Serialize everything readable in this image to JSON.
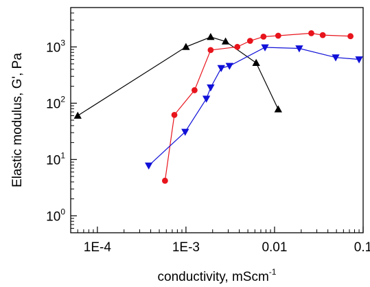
{
  "chart_data": {
    "type": "line",
    "xscale": "log",
    "yscale": "log",
    "xlim": [
      5e-05,
      0.1
    ],
    "ylim": [
      0.5,
      5000
    ],
    "grid": false,
    "xlabel": "conductivity, mScm",
    "xlabel_exponent": "-1",
    "ylabel": "Elastic modulus, G', Pa",
    "x_ticks": [
      {
        "value": 0.0001,
        "label": "1E-4"
      },
      {
        "value": 0.001,
        "label": "1E-3"
      },
      {
        "value": 0.01,
        "label": "0.01"
      },
      {
        "value": 0.1,
        "label": "0.1"
      }
    ],
    "y_ticks": [
      {
        "value": 1,
        "base": "10",
        "exp": "0"
      },
      {
        "value": 10,
        "base": "10",
        "exp": "1"
      },
      {
        "value": 100,
        "base": "10",
        "exp": "2"
      },
      {
        "value": 1000,
        "base": "10",
        "exp": "3"
      }
    ],
    "series": [
      {
        "color": "#000000",
        "marker": "triangle-up",
        "points": [
          [
            6e-05,
            60
          ],
          [
            0.001,
            1000
          ],
          [
            0.0019,
            1500
          ],
          [
            0.0028,
            1250
          ],
          [
            0.0062,
            520
          ],
          [
            0.011,
            78
          ]
        ]
      },
      {
        "color": "#e8141c",
        "marker": "circle",
        "points": [
          [
            0.00058,
            4.2
          ],
          [
            0.00074,
            62
          ],
          [
            0.00125,
            170
          ],
          [
            0.0019,
            880
          ],
          [
            0.0038,
            1000
          ],
          [
            0.0053,
            1280
          ],
          [
            0.0075,
            1520
          ],
          [
            0.011,
            1580
          ],
          [
            0.026,
            1750
          ],
          [
            0.035,
            1620
          ],
          [
            0.072,
            1550
          ]
        ]
      },
      {
        "color": "#1010d8",
        "marker": "triangle-down",
        "points": [
          [
            0.00038,
            7.8
          ],
          [
            0.00098,
            31
          ],
          [
            0.0017,
            120
          ],
          [
            0.0019,
            190
          ],
          [
            0.0025,
            420
          ],
          [
            0.0031,
            460
          ],
          [
            0.0078,
            980
          ],
          [
            0.019,
            940
          ],
          [
            0.049,
            650
          ],
          [
            0.09,
            600
          ]
        ]
      }
    ]
  }
}
